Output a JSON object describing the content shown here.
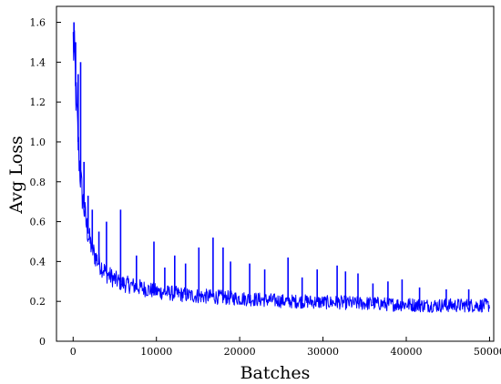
{
  "chart_data": {
    "type": "line",
    "title": "",
    "xlabel": "Batches",
    "ylabel": "Avg Loss",
    "xlim": [
      -2000,
      50500
    ],
    "ylim": [
      0,
      1.68
    ],
    "xticks": [
      0,
      10000,
      20000,
      30000,
      40000,
      50000
    ],
    "xtick_labels": [
      "0",
      "10000",
      "20000",
      "30000",
      "40000",
      "50000"
    ],
    "yticks": [
      0,
      0.2,
      0.4,
      0.6,
      0.8,
      1.0,
      1.2,
      1.4,
      1.6
    ],
    "ytick_labels": [
      "0",
      "0.2",
      "0.4",
      "0.6",
      "0.8",
      "1.0",
      "1.2",
      "1.4",
      "1.6"
    ],
    "grid": false,
    "legend": "none",
    "series": [
      {
        "color": "#0000ff",
        "x": [
          0,
          100,
          200,
          300,
          400,
          500,
          600,
          700,
          800,
          900,
          1000,
          1200,
          1400,
          1600,
          1800,
          2000,
          2500,
          3000,
          3500,
          4000,
          5000,
          6000,
          7000,
          8000,
          9000,
          10000,
          12000,
          14000,
          16000,
          18000,
          20000,
          22000,
          24000,
          26000,
          28000,
          30000,
          32000,
          34000,
          36000,
          38000,
          40000,
          42000,
          44000,
          46000,
          48000,
          50000
        ],
        "y": [
          1.5,
          1.45,
          1.38,
          1.28,
          1.18,
          1.08,
          1.0,
          0.93,
          0.87,
          0.82,
          0.77,
          0.7,
          0.64,
          0.58,
          0.54,
          0.5,
          0.44,
          0.4,
          0.37,
          0.34,
          0.31,
          0.29,
          0.28,
          0.27,
          0.26,
          0.25,
          0.24,
          0.23,
          0.225,
          0.22,
          0.215,
          0.21,
          0.205,
          0.2,
          0.2,
          0.195,
          0.195,
          0.19,
          0.19,
          0.185,
          0.185,
          0.18,
          0.18,
          0.18,
          0.18,
          0.18
        ]
      }
    ],
    "spikes": [
      {
        "x": 100,
        "y": 1.6
      },
      {
        "x": 300,
        "y": 1.5
      },
      {
        "x": 600,
        "y": 1.34
      },
      {
        "x": 900,
        "y": 1.4
      },
      {
        "x": 1300,
        "y": 0.9
      },
      {
        "x": 1800,
        "y": 0.73
      },
      {
        "x": 2300,
        "y": 0.66
      },
      {
        "x": 3100,
        "y": 0.55
      },
      {
        "x": 4000,
        "y": 0.6
      },
      {
        "x": 5700,
        "y": 0.66
      },
      {
        "x": 7600,
        "y": 0.43
      },
      {
        "x": 9700,
        "y": 0.5
      },
      {
        "x": 11000,
        "y": 0.37
      },
      {
        "x": 12200,
        "y": 0.43
      },
      {
        "x": 13500,
        "y": 0.39
      },
      {
        "x": 15100,
        "y": 0.47
      },
      {
        "x": 16800,
        "y": 0.52
      },
      {
        "x": 18000,
        "y": 0.47
      },
      {
        "x": 18900,
        "y": 0.4
      },
      {
        "x": 21200,
        "y": 0.39
      },
      {
        "x": 23000,
        "y": 0.36
      },
      {
        "x": 25800,
        "y": 0.42
      },
      {
        "x": 27500,
        "y": 0.32
      },
      {
        "x": 29300,
        "y": 0.36
      },
      {
        "x": 31700,
        "y": 0.38
      },
      {
        "x": 32700,
        "y": 0.35
      },
      {
        "x": 34200,
        "y": 0.34
      },
      {
        "x": 36000,
        "y": 0.29
      },
      {
        "x": 37800,
        "y": 0.3
      },
      {
        "x": 39500,
        "y": 0.31
      },
      {
        "x": 41600,
        "y": 0.27
      },
      {
        "x": 44800,
        "y": 0.26
      },
      {
        "x": 47500,
        "y": 0.26
      }
    ]
  }
}
